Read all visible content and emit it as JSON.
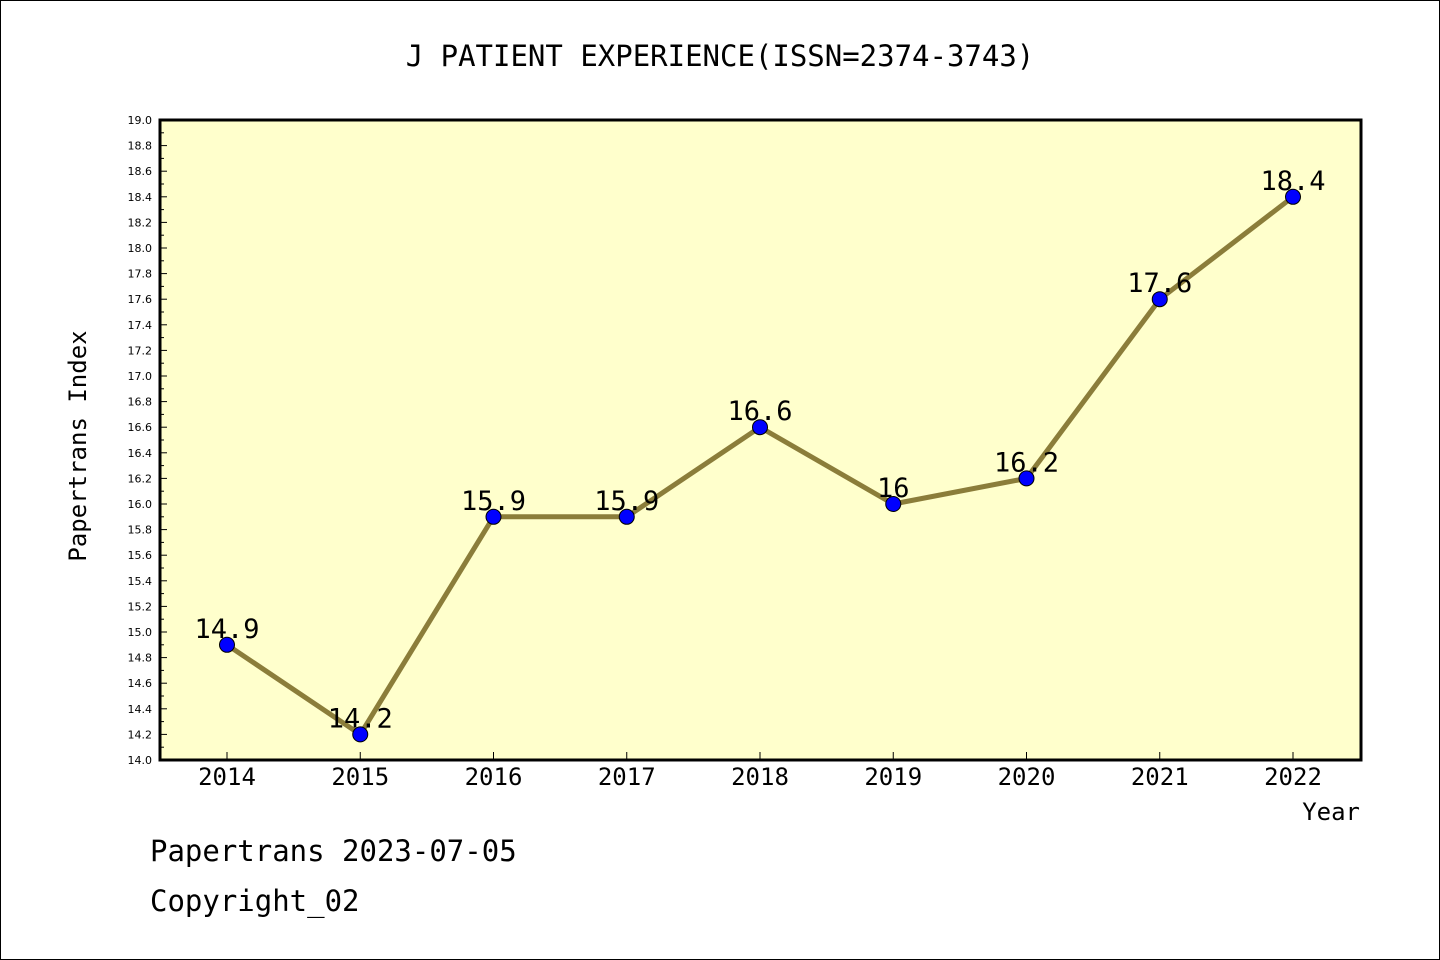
{
  "chart_data": {
    "type": "line",
    "title": "J PATIENT EXPERIENCE(ISSN=2374-3743)",
    "xlabel": "Year",
    "ylabel": "Papertrans Index",
    "categories": [
      "2014",
      "2015",
      "2016",
      "2017",
      "2018",
      "2019",
      "2020",
      "2021",
      "2022"
    ],
    "values": [
      14.9,
      14.2,
      15.9,
      15.9,
      16.6,
      16.0,
      16.2,
      17.6,
      18.4
    ],
    "data_labels": [
      "14.9",
      "14.2",
      "15.9",
      "15.9",
      "16.6",
      "16",
      "16.2",
      "17.6",
      "18.4"
    ],
    "ylim": [
      14.0,
      19.0
    ],
    "y_ticks": [
      "14.0",
      "14.2",
      "14.4",
      "14.6",
      "14.8",
      "15.0",
      "15.2",
      "15.4",
      "15.6",
      "15.8",
      "16.0",
      "16.2",
      "16.4",
      "16.6",
      "16.8",
      "17.0",
      "17.2",
      "17.4",
      "17.6",
      "17.8",
      "18.0",
      "18.2",
      "18.4",
      "18.6",
      "18.8",
      "19.0"
    ],
    "grid": false,
    "colors": {
      "plot_background": "#ffffcc",
      "line": "#8b7d3a",
      "marker": "#0000ff"
    }
  },
  "footer": {
    "date_text": "Papertrans 2023-07-05",
    "copyright_text": "Copyright_02"
  }
}
